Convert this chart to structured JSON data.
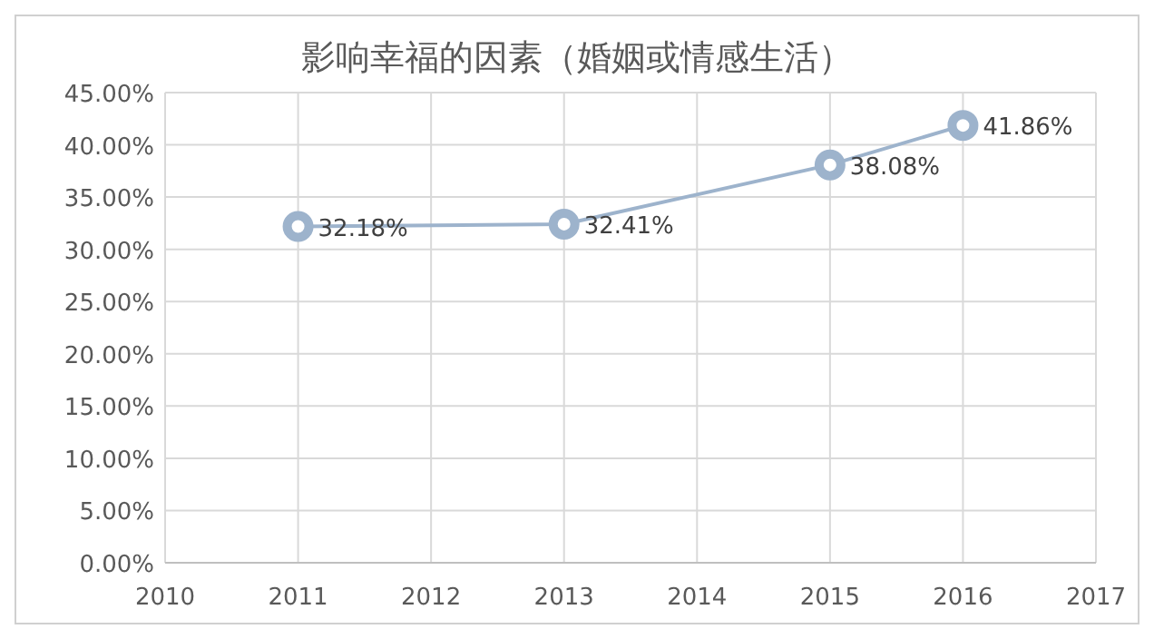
{
  "chart_data": {
    "type": "line",
    "title": "影响幸福的因素（婚姻或情感生活）",
    "x": [
      2011,
      2013,
      2015,
      2016
    ],
    "series": [
      {
        "color": "#9db3cc",
        "values": [
          32.18,
          32.41,
          38.08,
          41.86
        ],
        "value_labels": [
          "32.18%",
          "32.41%",
          "38.08%",
          "41.86%"
        ]
      }
    ],
    "xlim": [
      2010,
      2017
    ],
    "xticks": [
      2010,
      2011,
      2012,
      2013,
      2014,
      2015,
      2016,
      2017
    ],
    "ylim": [
      0,
      45
    ],
    "yticks": [
      {
        "value": 0,
        "label": "0.00%"
      },
      {
        "value": 5,
        "label": "5.00%"
      },
      {
        "value": 10,
        "label": "10.00%"
      },
      {
        "value": 15,
        "label": "15.00%"
      },
      {
        "value": 20,
        "label": "20.00%"
      },
      {
        "value": 25,
        "label": "25.00%"
      },
      {
        "value": 30,
        "label": "30.00%"
      },
      {
        "value": 35,
        "label": "35.00%"
      },
      {
        "value": 40,
        "label": "40.00%"
      },
      {
        "value": 45,
        "label": "45.00%"
      }
    ],
    "grid": true,
    "marker": "circle",
    "line_style": "solid"
  }
}
